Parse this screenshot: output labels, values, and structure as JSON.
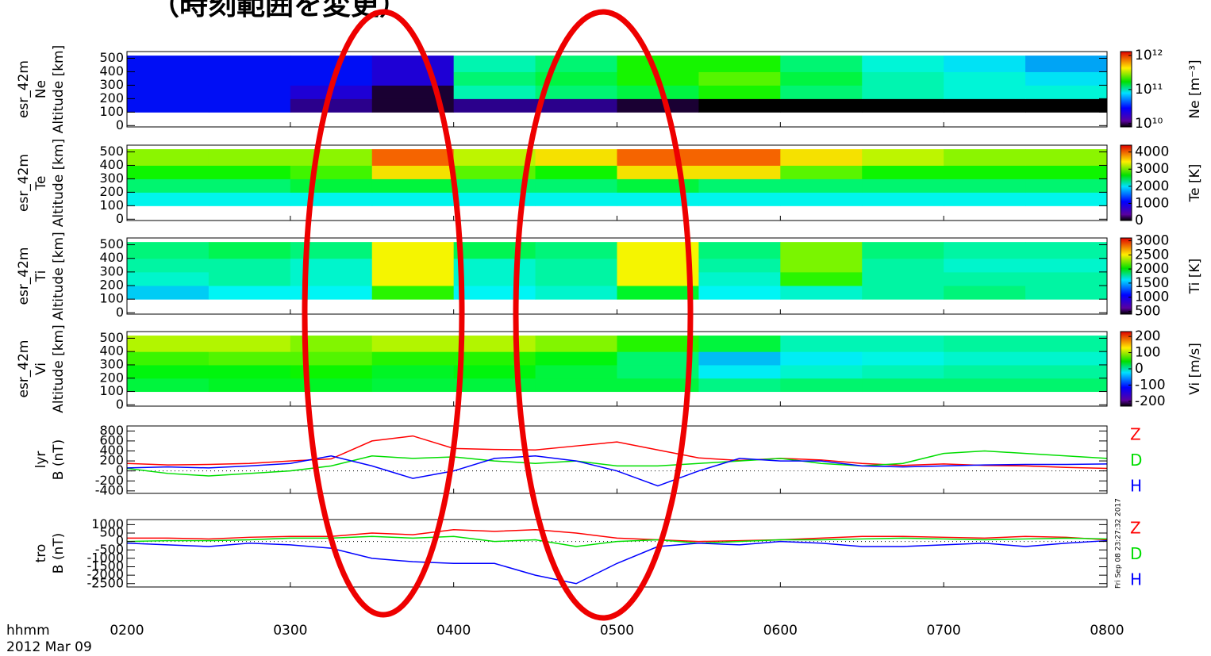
{
  "header": {
    "title": "（時刻範囲を変更）"
  },
  "time_label": "hhmm",
  "date_label": "2012 Mar 09",
  "timestamp": "Fri Sep 08 23:27:32 2017",
  "chart_data": [
    {
      "type": "heatmap",
      "ylabel": [
        "esr_42m",
        "Ne",
        "Altitude [km]"
      ],
      "colormap": "rainbow",
      "x": [
        2,
        2.5,
        3,
        3.5,
        4,
        4.5,
        5,
        5.5,
        6,
        6.5,
        7,
        7.5,
        8
      ],
      "y": [
        100,
        200,
        300,
        400,
        520
      ],
      "xlim": [
        2,
        8
      ],
      "ylim": [
        -10,
        550
      ],
      "yticks": [
        0,
        100,
        200,
        300,
        400,
        500
      ],
      "z": [
        [
          15000000000.0,
          15000000000.0,
          10000000000.0,
          8000000000.0,
          10000000000.0,
          10000000000.0,
          8000000000.0,
          6000000000.0,
          6000000000.0,
          6000000000.0,
          6000000000.0,
          6000000000.0
        ],
        [
          15000000000.0,
          15000000000.0,
          12000000000.0,
          8000000000.0,
          60000000000.0,
          80000000000.0,
          100000000000.0,
          150000000000.0,
          80000000000.0,
          60000000000.0,
          50000000000.0,
          50000000000.0
        ],
        [
          15000000000.0,
          15000000000.0,
          15000000000.0,
          12000000000.0,
          80000000000.0,
          100000000000.0,
          150000000000.0,
          200000000000.0,
          100000000000.0,
          60000000000.0,
          50000000000.0,
          40000000000.0
        ],
        [
          15000000000.0,
          15000000000.0,
          15000000000.0,
          12000000000.0,
          60000000000.0,
          80000000000.0,
          150000000000.0,
          150000000000.0,
          80000000000.0,
          50000000000.0,
          40000000000.0,
          30000000000.0
        ]
      ],
      "zlabel": "Ne [m⁻³]",
      "zscale": "log",
      "zlim": [
        8000000000.0,
        1300000000000.0
      ],
      "zticks": [
        {
          "value": 10000000000.0,
          "label": "10¹⁰"
        },
        {
          "value": 100000000000.0,
          "label": "10¹¹"
        },
        {
          "value": 1000000000000.0,
          "label": "10¹²"
        }
      ]
    },
    {
      "type": "heatmap",
      "ylabel": [
        "esr_42m",
        "Te",
        "Altitude [km]"
      ],
      "colormap": "rainbow",
      "x": [
        2,
        2.5,
        3,
        3.5,
        4,
        4.5,
        5,
        5.5,
        6,
        6.5,
        7,
        7.5,
        8
      ],
      "y": [
        100,
        200,
        300,
        400,
        520
      ],
      "xlim": [
        2,
        8
      ],
      "ylim": [
        -10,
        550
      ],
      "yticks": [
        0,
        100,
        200,
        300,
        400,
        500
      ],
      "z": [
        [
          1500,
          1500,
          1500,
          1500,
          1500,
          1500,
          1500,
          1500,
          1500,
          1500,
          1500,
          1500
        ],
        [
          2000,
          2000,
          2200,
          2200,
          2000,
          2000,
          2200,
          2000,
          2000,
          2000,
          2000,
          2000
        ],
        [
          2500,
          2500,
          2700,
          3500,
          2800,
          2500,
          3500,
          3500,
          2800,
          2500,
          2500,
          2500
        ],
        [
          3000,
          3000,
          3000,
          4000,
          3200,
          3500,
          4000,
          4000,
          3500,
          3200,
          3000,
          3000
        ]
      ],
      "zlabel": "Te [K]",
      "zscale": "linear",
      "zlim": [
        0,
        4400
      ],
      "zticks": [
        0,
        1000,
        2000,
        3000,
        4000
      ]
    },
    {
      "type": "heatmap",
      "ylabel": [
        "esr_42m",
        "Ti",
        "Altitude [km]"
      ],
      "colormap": "rainbow",
      "x": [
        2,
        2.5,
        3,
        3.5,
        4,
        4.5,
        5,
        5.5,
        6,
        6.5,
        7,
        7.5,
        8
      ],
      "y": [
        100,
        200,
        300,
        400,
        520
      ],
      "xlim": [
        2,
        8
      ],
      "ylim": [
        -10,
        550
      ],
      "yticks": [
        0,
        100,
        200,
        300,
        400,
        500
      ],
      "z": [
        [
          1200,
          1300,
          1300,
          2000,
          1300,
          1400,
          1800,
          1300,
          1400,
          1500,
          1600,
          1500
        ],
        [
          1400,
          1500,
          1400,
          2500,
          1400,
          1500,
          2500,
          1400,
          2000,
          1500,
          1500,
          1500
        ],
        [
          1500,
          1500,
          1400,
          2500,
          1400,
          1500,
          2500,
          1500,
          2200,
          1500,
          1400,
          1400
        ],
        [
          1600,
          1700,
          1600,
          2500,
          1700,
          1600,
          2500,
          1600,
          2200,
          1600,
          1500,
          1500
        ]
      ],
      "zlabel": "Ti [K]",
      "zscale": "linear",
      "zlim": [
        400,
        3100
      ],
      "zticks": [
        500,
        1000,
        1500,
        2000,
        2500,
        3000
      ]
    },
    {
      "type": "heatmap",
      "ylabel": [
        "esr_42m",
        "Vi",
        "Altitude [km]"
      ],
      "colormap": "rainbow",
      "x": [
        2,
        2.5,
        3,
        3.5,
        4,
        4.5,
        5,
        5.5,
        6,
        6.5,
        7,
        7.5,
        8
      ],
      "y": [
        100,
        200,
        300,
        400,
        520
      ],
      "xlim": [
        2,
        8
      ],
      "ylim": [
        -10,
        550
      ],
      "yticks": [
        0,
        100,
        200,
        300,
        400,
        500
      ],
      "z": [
        [
          0,
          10,
          10,
          0,
          0,
          0,
          0,
          -30,
          -20,
          -20,
          -20,
          -20
        ],
        [
          20,
          20,
          30,
          10,
          20,
          0,
          -20,
          -80,
          -60,
          -50,
          -40,
          -40
        ],
        [
          50,
          60,
          60,
          40,
          40,
          20,
          -20,
          -100,
          -80,
          -70,
          -60,
          -60
        ],
        [
          100,
          100,
          80,
          100,
          100,
          80,
          40,
          0,
          -50,
          -50,
          -40,
          -40
        ]
      ],
      "zlabel": "Vi [m/s]",
      "zscale": "linear",
      "zlim": [
        -230,
        230
      ],
      "zticks": [
        -200,
        -100,
        0,
        100,
        200
      ]
    },
    {
      "type": "line",
      "ylabel": [
        "lyr",
        "B (nT)"
      ],
      "xlim": [
        2,
        8
      ],
      "ylim": [
        -450,
        900
      ],
      "yticks": [
        -400,
        -200,
        0,
        200,
        400,
        600,
        800
      ],
      "x": [
        2,
        2.25,
        2.5,
        2.75,
        3,
        3.25,
        3.5,
        3.75,
        4,
        4.25,
        4.5,
        4.75,
        5,
        5.25,
        5.5,
        5.75,
        6,
        6.25,
        6.5,
        6.75,
        7,
        7.25,
        7.5,
        7.75,
        8
      ],
      "series": [
        {
          "name": "Z",
          "color": "#ff0000",
          "values": [
            150,
            120,
            130,
            150,
            200,
            240,
            600,
            700,
            450,
            430,
            420,
            500,
            580,
            420,
            260,
            210,
            250,
            220,
            150,
            110,
            140,
            110,
            100,
            70,
            50
          ]
        },
        {
          "name": "D",
          "color": "#00dd00",
          "values": [
            50,
            -50,
            -100,
            -50,
            0,
            100,
            300,
            250,
            280,
            200,
            150,
            200,
            100,
            100,
            150,
            200,
            250,
            150,
            100,
            150,
            350,
            400,
            350,
            300,
            250
          ]
        },
        {
          "name": "H",
          "color": "#0000ff",
          "values": [
            60,
            80,
            60,
            100,
            150,
            300,
            100,
            -150,
            0,
            250,
            300,
            200,
            0,
            -300,
            0,
            250,
            200,
            200,
            100,
            80,
            100,
            120,
            130,
            130,
            140
          ]
        }
      ]
    },
    {
      "type": "line",
      "ylabel": [
        "tro",
        "B (nT)"
      ],
      "ylim": [
        -2700,
        1300
      ],
      "yticks": [
        -2500,
        -2000,
        -1500,
        -1000,
        -500,
        0,
        500,
        1000
      ],
      "xlim": [
        2,
        8
      ],
      "xticks": [
        {
          "value": 2,
          "label": "0200"
        },
        {
          "value": 3,
          "label": "0300"
        },
        {
          "value": 4,
          "label": "0400"
        },
        {
          "value": 5,
          "label": "0500"
        },
        {
          "value": 6,
          "label": "0600"
        },
        {
          "value": 7,
          "label": "0700"
        },
        {
          "value": 8,
          "label": "0800"
        }
      ],
      "x": [
        2,
        2.25,
        2.5,
        2.75,
        3,
        3.25,
        3.5,
        3.75,
        4,
        4.25,
        4.5,
        4.75,
        5,
        5.25,
        5.5,
        5.75,
        6,
        6.25,
        6.5,
        6.75,
        7,
        7.25,
        7.5,
        7.75,
        8
      ],
      "series": [
        {
          "name": "Z",
          "color": "#ff0000",
          "values": [
            200,
            200,
            150,
            250,
            300,
            300,
            500,
            400,
            700,
            600,
            700,
            500,
            200,
            100,
            0,
            50,
            100,
            200,
            300,
            300,
            250,
            200,
            300,
            250,
            100
          ]
        },
        {
          "name": "D",
          "color": "#00dd00",
          "values": [
            0,
            50,
            50,
            100,
            200,
            200,
            300,
            200,
            300,
            0,
            100,
            -300,
            0,
            100,
            -100,
            0,
            100,
            100,
            150,
            200,
            150,
            100,
            150,
            200,
            150
          ]
        },
        {
          "name": "H",
          "color": "#0000ff",
          "values": [
            -100,
            -200,
            -300,
            -100,
            -200,
            -400,
            -1000,
            -1200,
            -1300,
            -1300,
            -2000,
            -2500,
            -1300,
            -300,
            -100,
            -200,
            0,
            -100,
            -300,
            -300,
            -200,
            -100,
            -300,
            -100,
            50
          ]
        }
      ]
    }
  ]
}
